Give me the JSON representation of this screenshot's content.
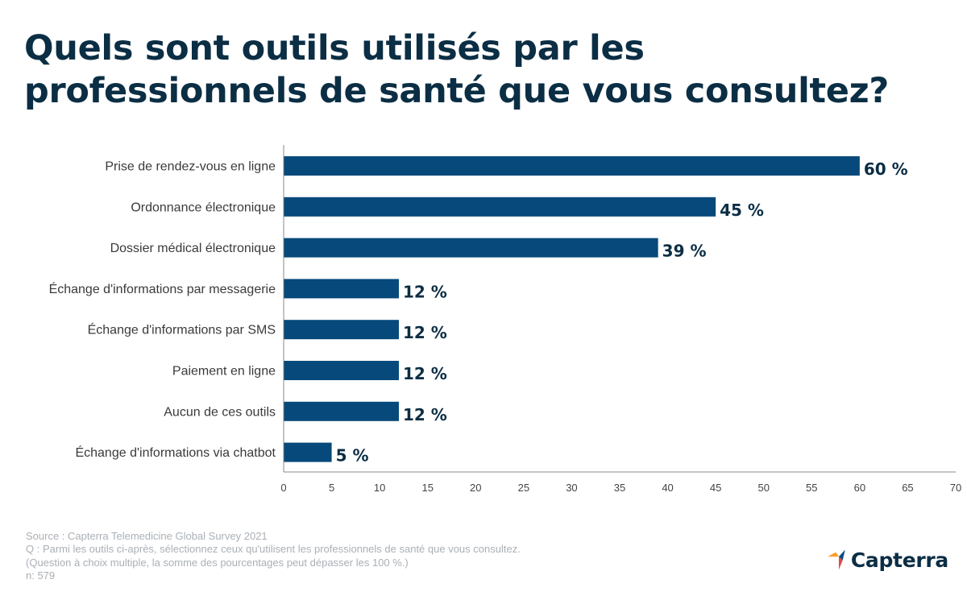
{
  "header": {
    "title_line1": "Quels sont outils utilisés par les",
    "title_line2": "professionnels de santé que vous consultez?"
  },
  "colors": {
    "bar": "#06497a",
    "title": "#0b2e44",
    "axis": "#888888",
    "footer": "#aab0b6"
  },
  "chart_data": {
    "type": "bar",
    "orientation": "horizontal",
    "categories": [
      "Prise de rendez-vous en ligne",
      "Ordonnance électronique",
      "Dossier médical électronique",
      "Échange d'informations par messagerie",
      "Échange d'informations par SMS",
      "Paiement en ligne",
      "Aucun de ces outils",
      "Échange d'informations via chatbot"
    ],
    "values": [
      60,
      45,
      39,
      12,
      12,
      12,
      12,
      5
    ],
    "value_labels": [
      "60 %",
      "45 %",
      "39 %",
      "12 %",
      "12 %",
      "12 %",
      "12 %",
      "5 %"
    ],
    "xlim": [
      0,
      70
    ],
    "xticks": [
      0,
      5,
      10,
      15,
      20,
      25,
      30,
      35,
      40,
      45,
      50,
      55,
      60,
      65,
      70
    ],
    "grid": false,
    "title": "Quels sont outils utilisés par les professionnels de santé que vous consultez?"
  },
  "footer": {
    "source": "Source : Capterra Telemedicine Global Survey 2021",
    "question": "Q : Parmi les outils ci-après, sélectionnez ceux qu'utilisent les professionnels de santé que vous consultez.",
    "note": "(Question à choix multiple, la somme des pourcentages peut dépasser les 100 %.)",
    "sample": "n: 579"
  },
  "brand": {
    "name": "Capterra",
    "logo_icon": "capterra-arrow-icon"
  }
}
